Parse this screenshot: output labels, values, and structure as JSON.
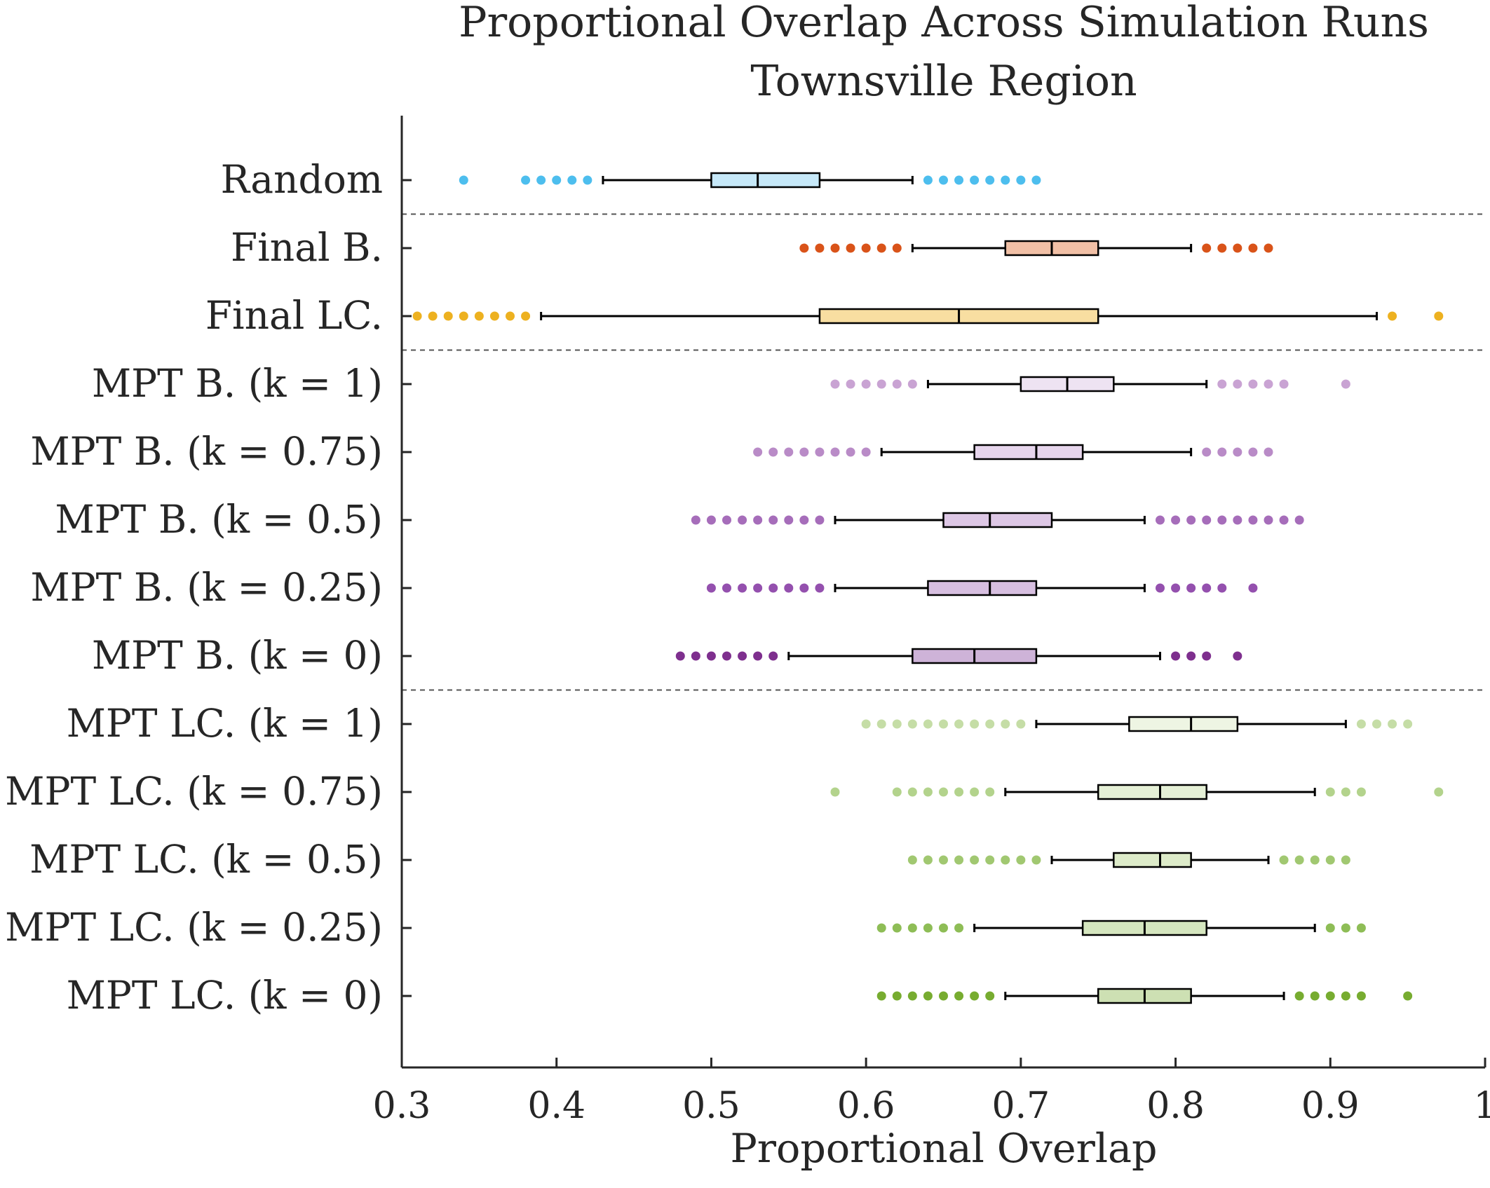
{
  "chart_data": {
    "type": "boxplot",
    "orientation": "horizontal",
    "title": "Proportional Overlap Across Simulation Runs",
    "subtitle": "Townsville Region",
    "xlabel": "Proportional Overlap",
    "ylabel": "",
    "xlim": [
      0.3,
      1.0
    ],
    "xticks": [
      "0.3",
      "0.4",
      "0.5",
      "0.6",
      "0.7",
      "0.8",
      "0.9",
      "1"
    ],
    "grid": false,
    "group_separators_after": [
      "Random",
      "Final LC.",
      "MPT B. (k = 0)"
    ],
    "categories": [
      {
        "label": "Random",
        "color": "#4DBEEE",
        "fill": "#C6E8F8",
        "whisker_low": 0.43,
        "q1": 0.5,
        "median": 0.53,
        "q3": 0.57,
        "whisker_high": 0.63,
        "outliers": [
          0.34,
          0.38,
          0.39,
          0.4,
          0.41,
          0.42,
          0.64,
          0.65,
          0.66,
          0.67,
          0.68,
          0.69,
          0.7,
          0.71
        ]
      },
      {
        "label": "Final B.",
        "color": "#D95319",
        "fill": "#F1C0A6",
        "whisker_low": 0.63,
        "q1": 0.69,
        "median": 0.72,
        "q3": 0.75,
        "whisker_high": 0.81,
        "outliers": [
          0.56,
          0.57,
          0.58,
          0.59,
          0.6,
          0.61,
          0.62,
          0.82,
          0.83,
          0.84,
          0.85,
          0.86
        ]
      },
      {
        "label": "Final LC.",
        "color": "#EDB120",
        "fill": "#F8DEA1",
        "whisker_low": 0.39,
        "q1": 0.57,
        "median": 0.66,
        "q3": 0.75,
        "whisker_high": 0.93,
        "outliers": [
          0.31,
          0.32,
          0.33,
          0.34,
          0.35,
          0.36,
          0.37,
          0.38,
          0.94,
          0.97
        ]
      },
      {
        "label": "MPT B. (k = 1)",
        "color": "#C9A3D3",
        "fill": "#EEE3F2",
        "whisker_low": 0.64,
        "q1": 0.7,
        "median": 0.73,
        "q3": 0.76,
        "whisker_high": 0.82,
        "outliers": [
          0.58,
          0.59,
          0.6,
          0.61,
          0.62,
          0.63,
          0.83,
          0.84,
          0.85,
          0.86,
          0.87,
          0.91
        ]
      },
      {
        "label": "MPT B. (k = 0.75)",
        "color": "#B98BC7",
        "fill": "#E6D5EC",
        "whisker_low": 0.61,
        "q1": 0.67,
        "median": 0.71,
        "q3": 0.74,
        "whisker_high": 0.81,
        "outliers": [
          0.53,
          0.54,
          0.55,
          0.56,
          0.57,
          0.58,
          0.59,
          0.6,
          0.82,
          0.83,
          0.84,
          0.85,
          0.86
        ]
      },
      {
        "label": "MPT B. (k = 0.5)",
        "color": "#A66DBA",
        "fill": "#DDC7E5",
        "whisker_low": 0.58,
        "q1": 0.65,
        "median": 0.68,
        "q3": 0.72,
        "whisker_high": 0.78,
        "outliers": [
          0.49,
          0.5,
          0.51,
          0.52,
          0.53,
          0.54,
          0.55,
          0.56,
          0.57,
          0.79,
          0.8,
          0.81,
          0.82,
          0.83,
          0.84,
          0.85,
          0.86,
          0.87,
          0.88
        ]
      },
      {
        "label": "MPT B. (k = 0.25)",
        "color": "#9450AE",
        "fill": "#D7BFE0",
        "whisker_low": 0.58,
        "q1": 0.64,
        "median": 0.68,
        "q3": 0.71,
        "whisker_high": 0.78,
        "outliers": [
          0.5,
          0.51,
          0.52,
          0.53,
          0.54,
          0.55,
          0.56,
          0.57,
          0.79,
          0.8,
          0.81,
          0.82,
          0.83,
          0.85
        ]
      },
      {
        "label": "MPT B. (k = 0)",
        "color": "#7E2F8E",
        "fill": "#CEB3D8",
        "whisker_low": 0.55,
        "q1": 0.63,
        "median": 0.67,
        "q3": 0.71,
        "whisker_high": 0.79,
        "outliers": [
          0.48,
          0.49,
          0.5,
          0.51,
          0.52,
          0.53,
          0.54,
          0.8,
          0.81,
          0.82,
          0.84
        ]
      },
      {
        "label": "MPT LC. (k = 1)",
        "color": "#C5DDA6",
        "fill": "#EEF5E3",
        "whisker_low": 0.71,
        "q1": 0.77,
        "median": 0.81,
        "q3": 0.84,
        "whisker_high": 0.91,
        "outliers": [
          0.6,
          0.61,
          0.62,
          0.63,
          0.64,
          0.65,
          0.66,
          0.67,
          0.68,
          0.69,
          0.7,
          0.92,
          0.93,
          0.94,
          0.95
        ]
      },
      {
        "label": "MPT LC. (k = 0.75)",
        "color": "#B3D38C",
        "fill": "#E5F0D6",
        "whisker_low": 0.69,
        "q1": 0.75,
        "median": 0.79,
        "q3": 0.82,
        "whisker_high": 0.89,
        "outliers": [
          0.58,
          0.62,
          0.63,
          0.64,
          0.65,
          0.66,
          0.67,
          0.68,
          0.9,
          0.91,
          0.92,
          0.97
        ]
      },
      {
        "label": "MPT LC. (k = 0.5)",
        "color": "#A1C871",
        "fill": "#DDEBC9",
        "whisker_low": 0.72,
        "q1": 0.76,
        "median": 0.79,
        "q3": 0.81,
        "whisker_high": 0.86,
        "outliers": [
          0.63,
          0.64,
          0.65,
          0.66,
          0.67,
          0.68,
          0.69,
          0.7,
          0.71,
          0.87,
          0.88,
          0.89,
          0.9,
          0.91
        ]
      },
      {
        "label": "MPT LC. (k = 0.25)",
        "color": "#8EBD56",
        "fill": "#D5E6BF",
        "whisker_low": 0.67,
        "q1": 0.74,
        "median": 0.78,
        "q3": 0.82,
        "whisker_high": 0.89,
        "outliers": [
          0.61,
          0.62,
          0.63,
          0.64,
          0.65,
          0.66,
          0.9,
          0.91,
          0.92
        ]
      },
      {
        "label": "MPT LC. (k = 0)",
        "color": "#77AC30",
        "fill": "#CDE0B3",
        "whisker_low": 0.69,
        "q1": 0.75,
        "median": 0.78,
        "q3": 0.81,
        "whisker_high": 0.87,
        "outliers": [
          0.61,
          0.62,
          0.63,
          0.64,
          0.65,
          0.66,
          0.67,
          0.68,
          0.88,
          0.89,
          0.9,
          0.91,
          0.92,
          0.95
        ]
      }
    ]
  }
}
